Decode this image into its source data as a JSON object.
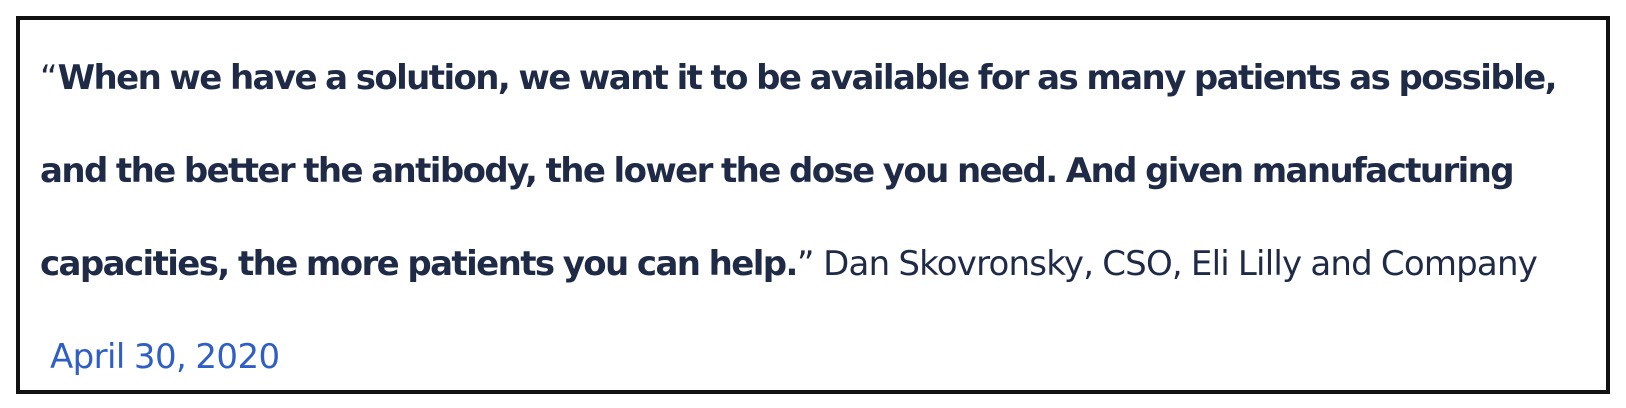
{
  "quote": {
    "open_mark": "“",
    "text": "When we have a solution, we want it to be available for as many patients as possible, and the better the antibody, the lower the dose you need. And given manufacturing capacities, the more patients you can help.",
    "close_mark": "”",
    "attribution": "Dan Skovronsky, CSO, Eli Lilly and Company",
    "date": "April 30, 2020"
  },
  "colors": {
    "text": "#1e2a46",
    "link": "#2f5fc6",
    "border": "#111111",
    "background": "#ffffff"
  }
}
